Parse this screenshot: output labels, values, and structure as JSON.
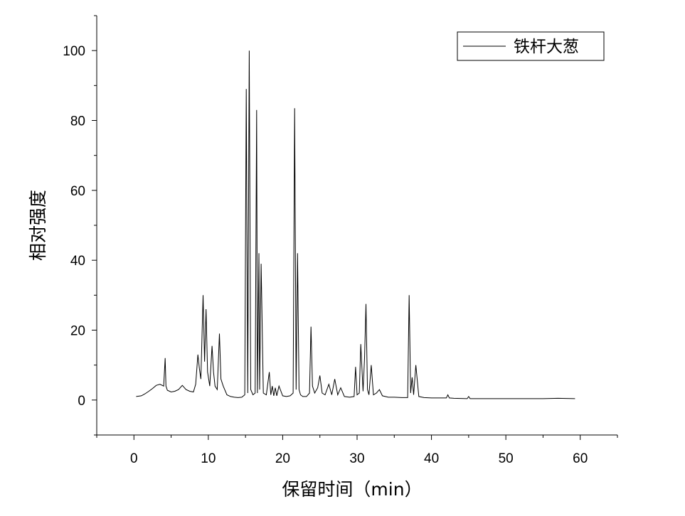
{
  "chart_data": {
    "type": "line",
    "xlabel": "保留时间（min）",
    "ylabel": "相对强度",
    "xlim": [
      -5,
      65
    ],
    "ylim": [
      -10,
      110
    ],
    "x_ticks": [
      0,
      10,
      20,
      30,
      40,
      50,
      60
    ],
    "y_ticks": [
      0,
      20,
      40,
      60,
      80,
      100
    ],
    "grid": false,
    "legend_position": "top-right",
    "line_color": "#000000",
    "series": [
      {
        "name": "铁杆大葱",
        "x": [
          0.3,
          1.0,
          1.5,
          2.0,
          2.5,
          3.0,
          3.5,
          4.0,
          4.2,
          4.3,
          4.5,
          5.0,
          5.5,
          6.0,
          6.5,
          7.0,
          7.5,
          8.0,
          8.3,
          8.6,
          8.8,
          9.0,
          9.3,
          9.5,
          9.7,
          9.9,
          10.2,
          10.5,
          10.7,
          10.9,
          11.2,
          11.5,
          11.7,
          12.0,
          12.5,
          13.0,
          13.5,
          14.0,
          14.5,
          14.9,
          15.1,
          15.3,
          15.5,
          15.7,
          16.0,
          16.3,
          16.5,
          16.6,
          16.8,
          16.9,
          17.1,
          17.4,
          17.8,
          18.2,
          18.4,
          18.6,
          18.8,
          19.0,
          19.2,
          19.5,
          20.0,
          20.5,
          21.0,
          21.4,
          21.6,
          21.8,
          22.0,
          22.2,
          22.4,
          22.7,
          23.2,
          23.6,
          23.8,
          24.0,
          24.3,
          24.7,
          25.0,
          25.3,
          25.7,
          26.2,
          26.6,
          27.0,
          27.4,
          27.8,
          28.3,
          29.0,
          29.6,
          29.8,
          30.0,
          30.3,
          30.5,
          30.8,
          31.0,
          31.2,
          31.4,
          31.6,
          31.9,
          32.2,
          32.6,
          33.0,
          33.4,
          33.8,
          34.2,
          35.0,
          36.0,
          36.8,
          37.0,
          37.2,
          37.4,
          37.6,
          37.9,
          38.3,
          39.0,
          40.0,
          41.0,
          42.0,
          42.2,
          42.4,
          43.0,
          44.8,
          45.0,
          45.2,
          47.0,
          50.0,
          53.0,
          55.0,
          57.0,
          59.3
        ],
        "values": [
          1.0,
          1.2,
          1.8,
          2.5,
          3.3,
          4.2,
          4.5,
          4.0,
          12.0,
          4.0,
          2.8,
          2.3,
          2.5,
          3.0,
          4.2,
          3.0,
          2.5,
          2.3,
          4.5,
          13.0,
          9.0,
          6.0,
          30.0,
          11.0,
          26.0,
          8.0,
          4.0,
          15.5,
          8.0,
          4.0,
          3.0,
          19.0,
          6.0,
          4.0,
          1.5,
          1.0,
          0.8,
          0.7,
          0.8,
          1.5,
          89.0,
          2.0,
          100.0,
          3.0,
          1.5,
          2.0,
          83.0,
          2.0,
          42.0,
          3.0,
          39.0,
          2.0,
          1.5,
          8.0,
          1.5,
          4.0,
          1.2,
          3.5,
          1.2,
          4.0,
          1.2,
          1.0,
          1.2,
          2.0,
          83.5,
          3.0,
          42.0,
          3.0,
          1.5,
          1.0,
          1.0,
          2.0,
          21.0,
          4.0,
          2.0,
          3.5,
          7.0,
          2.0,
          1.5,
          4.5,
          1.5,
          6.0,
          1.5,
          3.5,
          1.0,
          0.8,
          1.0,
          9.5,
          1.5,
          2.0,
          16.0,
          2.5,
          12.0,
          27.5,
          3.0,
          1.5,
          10.0,
          1.5,
          2.0,
          3.0,
          1.2,
          1.0,
          0.8,
          0.8,
          0.7,
          0.7,
          30.0,
          2.0,
          6.5,
          1.5,
          10.0,
          1.0,
          0.7,
          0.6,
          0.6,
          0.6,
          1.5,
          0.6,
          0.5,
          0.4,
          1.0,
          0.4,
          0.4,
          0.4,
          0.4,
          0.4,
          0.5,
          0.4
        ]
      }
    ]
  }
}
